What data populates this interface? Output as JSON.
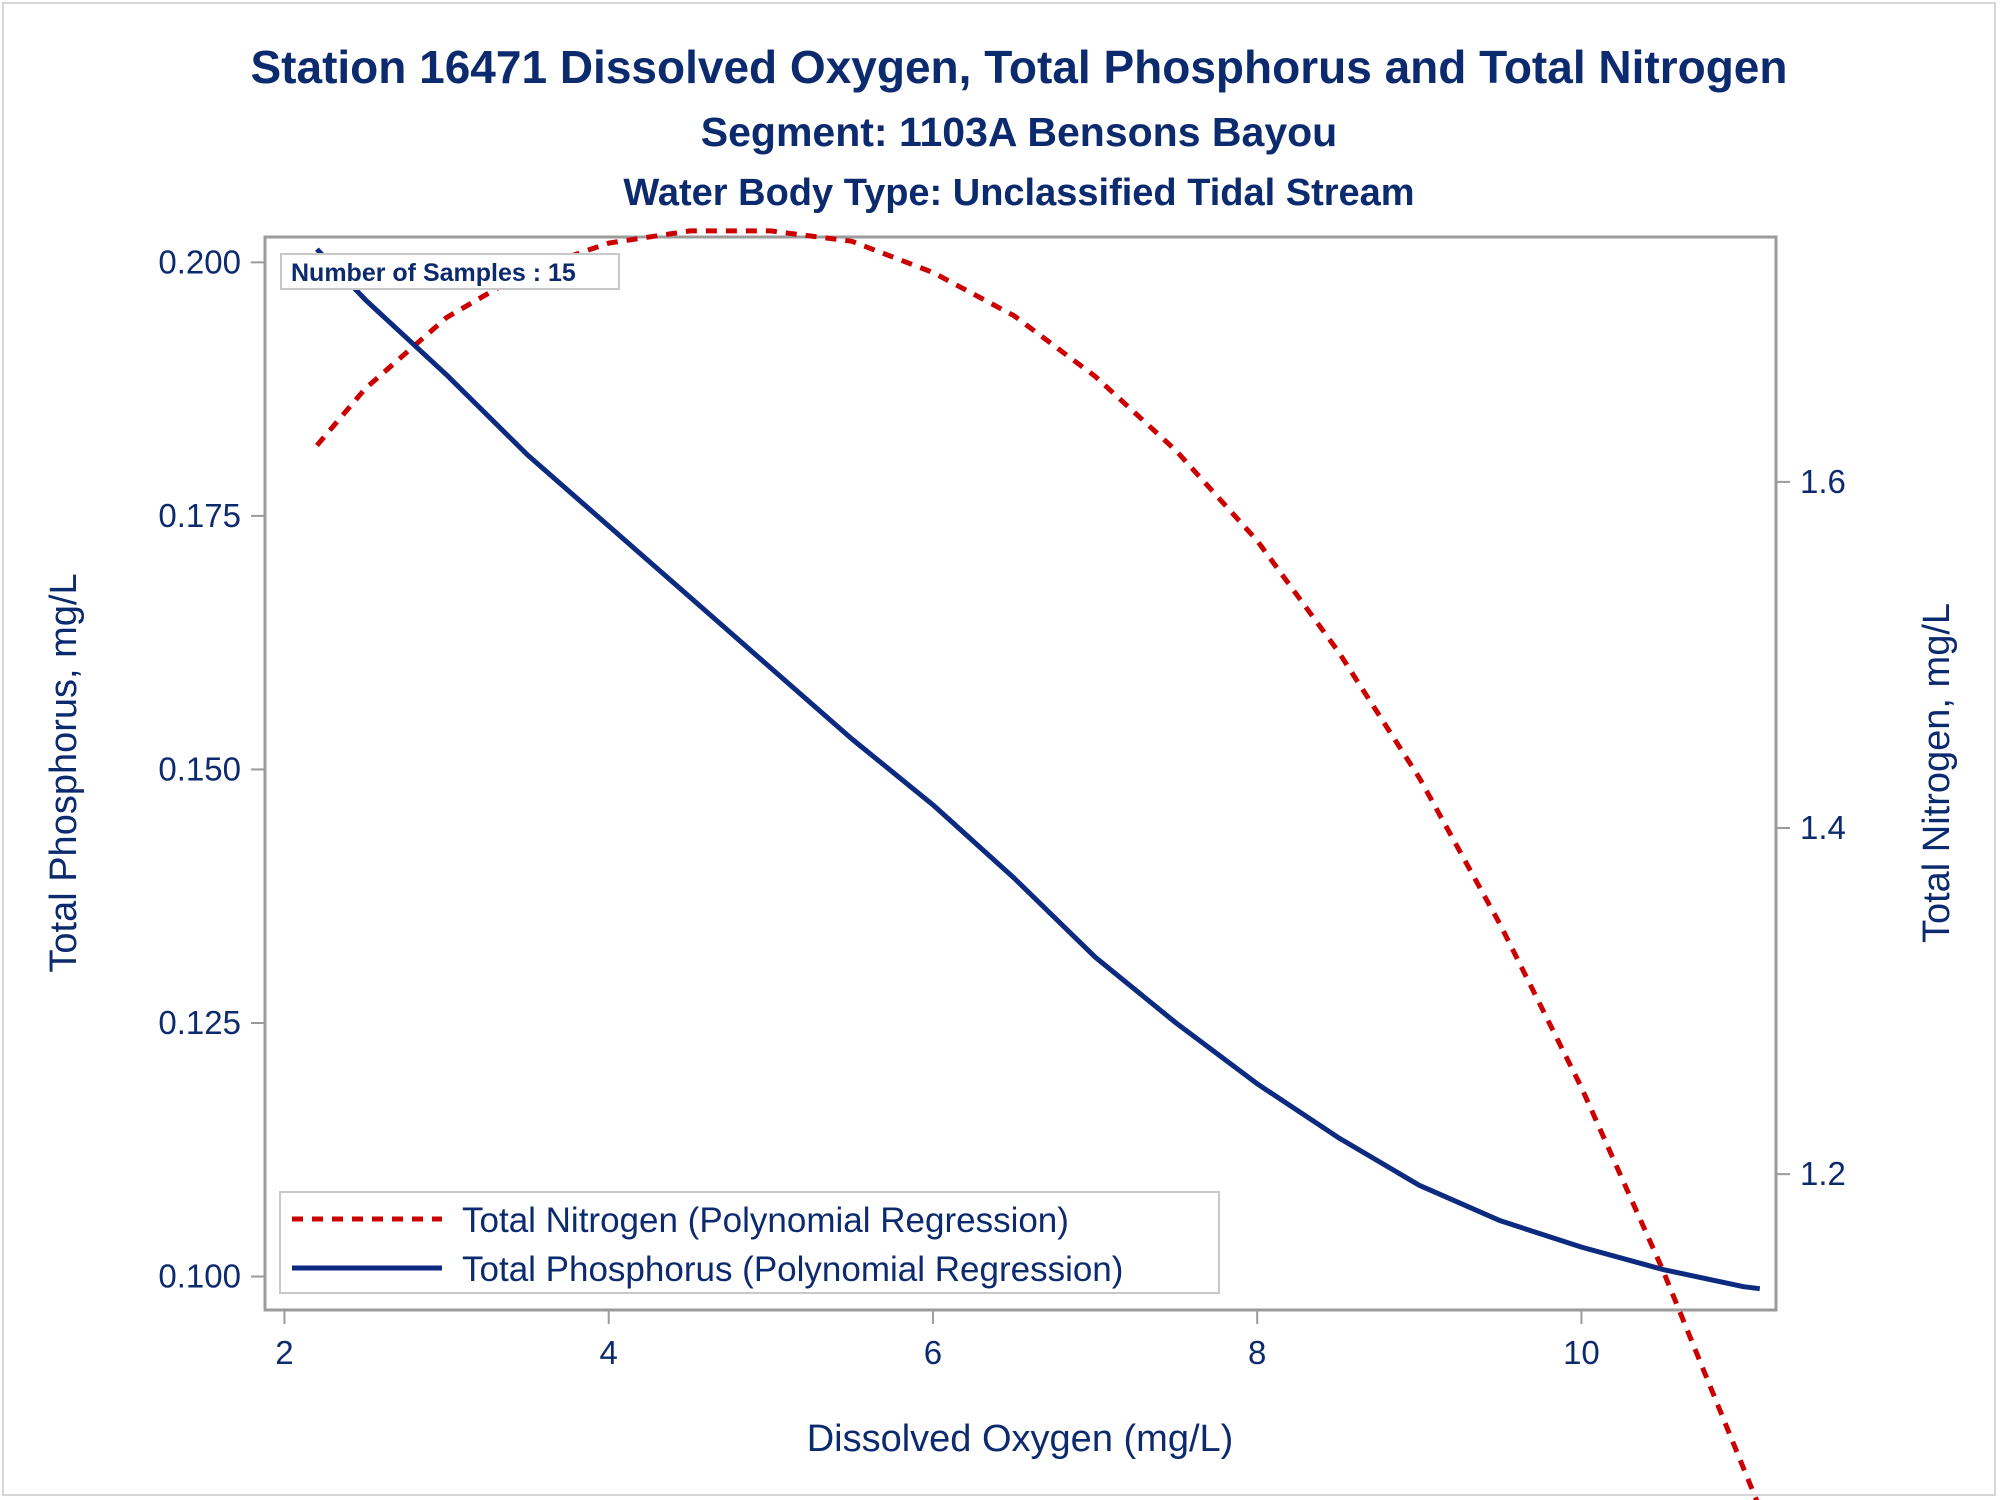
{
  "chart_data": {
    "type": "line",
    "title": "Station 16471  Dissolved Oxygen, Total Phosphorus and Total Nitrogen",
    "subtitle": "Segment: 1103A  Bensons Bayou",
    "subtitle2": "Water Body Type: Unclassified Tidal Stream",
    "xlabel": "Dissolved Oxygen (mg/L)",
    "ylabel": "Total Phosphorus, mg/L",
    "y2label": "Total Nitrogen, mg/L",
    "xlim": [
      1.88,
      11.2
    ],
    "ylim": [
      0.0967,
      0.2025
    ],
    "y2lim": [
      1.1215,
      1.7415
    ],
    "xticks": [
      2,
      4,
      6,
      8,
      10
    ],
    "xtick_labels": [
      "2",
      "4",
      "6",
      "8",
      "10"
    ],
    "yticks": [
      0.1,
      0.125,
      0.15,
      0.175,
      0.2
    ],
    "ytick_labels": [
      "0.100",
      "0.125",
      "0.150",
      "0.175",
      "0.200"
    ],
    "y2ticks": [
      1.2,
      1.4,
      1.6
    ],
    "y2tick_labels": [
      "1.2",
      "1.4",
      "1.6"
    ],
    "annotation": "Number of Samples : 15",
    "grid": false,
    "legend_position": "bottom-left",
    "series": [
      {
        "name": "Total Nitrogen (Polynomial Regression)",
        "axis": "right",
        "color": "#cc0000",
        "style": "dashed",
        "x": [
          2.2,
          2.5,
          3.0,
          3.5,
          4.0,
          4.5,
          5.0,
          5.5,
          6.0,
          6.5,
          7.0,
          7.5,
          8.0,
          8.5,
          9.0,
          9.5,
          10.0,
          10.5,
          11.0,
          11.1
        ],
        "values": [
          1.621,
          1.654,
          1.695,
          1.722,
          1.738,
          1.745,
          1.745,
          1.739,
          1.721,
          1.696,
          1.661,
          1.618,
          1.566,
          1.502,
          1.429,
          1.344,
          1.25,
          1.145,
          1.03,
          1.007
        ]
      },
      {
        "name": "Total Phosphorus (Polynomial Regression)",
        "axis": "left",
        "color": "#0c2a80",
        "style": "solid",
        "x": [
          2.2,
          2.5,
          3.0,
          3.5,
          4.0,
          4.5,
          5.0,
          5.5,
          6.0,
          6.5,
          7.0,
          7.5,
          8.0,
          8.5,
          9.0,
          9.5,
          10.0,
          10.5,
          11.0,
          11.1
        ],
        "values": [
          0.2013,
          0.1963,
          0.1889,
          0.181,
          0.174,
          0.167,
          0.16,
          0.153,
          0.1465,
          0.1393,
          0.1315,
          0.125,
          0.119,
          0.1137,
          0.109,
          0.1055,
          0.1029,
          0.1007,
          0.099,
          0.0988
        ]
      }
    ]
  }
}
